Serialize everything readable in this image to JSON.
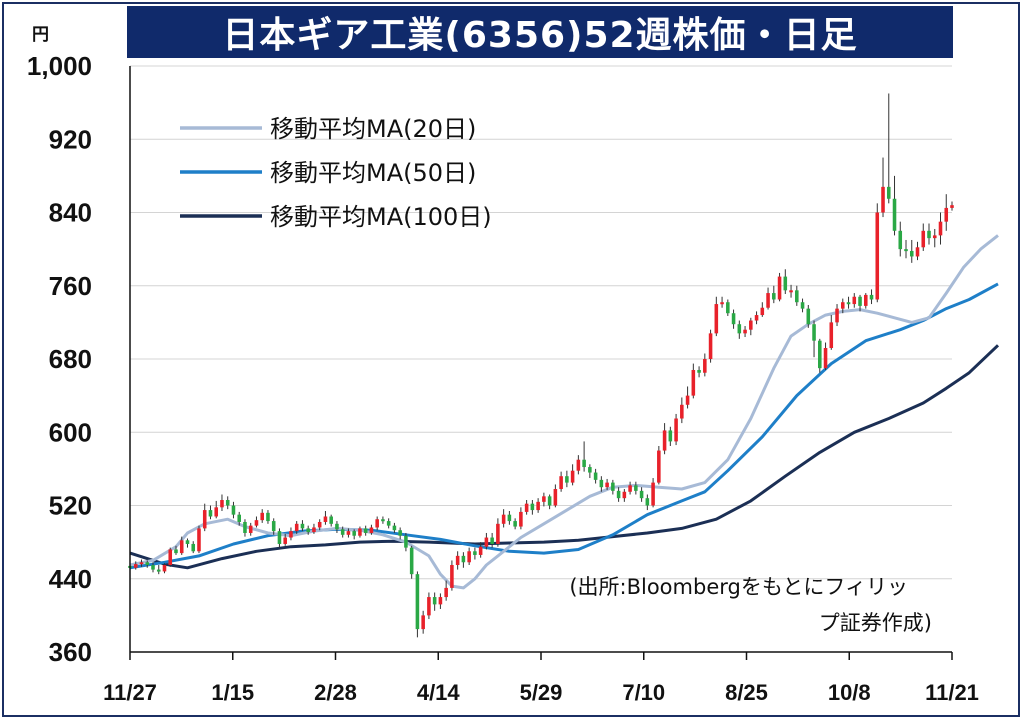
{
  "title": "日本ギア工業(6356)52週株価・日足",
  "chart_data": {
    "type": "candlestick",
    "title": "日本ギア工業(6356)52週株価・日足",
    "y_unit": "円",
    "ylim": [
      360,
      1000
    ],
    "yticks": [
      "1,000",
      "920",
      "840",
      "760",
      "680",
      "600",
      "520",
      "440",
      "360"
    ],
    "ytick_values": [
      1000,
      920,
      840,
      760,
      680,
      600,
      520,
      440,
      360
    ],
    "x_labels": [
      "11/27",
      "1/15",
      "2/28",
      "4/14",
      "5/29",
      "7/10",
      "8/25",
      "10/8",
      "11/21"
    ],
    "grid": "horizontal",
    "legend_position": "top-left",
    "up_color": "#e8212a",
    "down_color": "#2aa845",
    "series": [
      {
        "name": "移動平均MA(20日)",
        "color": "#a7bad6",
        "points": [
          [
            0,
            455
          ],
          [
            4,
            460
          ],
          [
            8,
            475
          ],
          [
            10,
            490
          ],
          [
            13,
            500
          ],
          [
            17,
            505
          ],
          [
            20,
            497
          ],
          [
            24,
            490
          ],
          [
            28,
            487
          ],
          [
            32,
            492
          ],
          [
            36,
            495
          ],
          [
            40,
            493
          ],
          [
            44,
            488
          ],
          [
            48,
            480
          ],
          [
            52,
            465
          ],
          [
            54,
            445
          ],
          [
            56,
            432
          ],
          [
            58,
            430
          ],
          [
            60,
            440
          ],
          [
            62,
            455
          ],
          [
            64,
            465
          ],
          [
            68,
            485
          ],
          [
            72,
            500
          ],
          [
            76,
            515
          ],
          [
            80,
            530
          ],
          [
            84,
            540
          ],
          [
            88,
            542
          ],
          [
            92,
            540
          ],
          [
            96,
            538
          ],
          [
            100,
            545
          ],
          [
            104,
            570
          ],
          [
            108,
            615
          ],
          [
            112,
            670
          ],
          [
            115,
            705
          ],
          [
            118,
            718
          ],
          [
            121,
            728
          ],
          [
            124,
            732
          ],
          [
            127,
            734
          ],
          [
            130,
            730
          ],
          [
            133,
            725
          ],
          [
            136,
            720
          ],
          [
            139,
            725
          ],
          [
            142,
            752
          ],
          [
            145,
            780
          ],
          [
            148,
            800
          ],
          [
            151,
            815
          ]
        ]
      },
      {
        "name": "移動平均MA(50日)",
        "color": "#1e7fc8",
        "points": [
          [
            0,
            452
          ],
          [
            6,
            458
          ],
          [
            12,
            465
          ],
          [
            18,
            478
          ],
          [
            24,
            487
          ],
          [
            30,
            492
          ],
          [
            36,
            494
          ],
          [
            42,
            493
          ],
          [
            48,
            488
          ],
          [
            54,
            483
          ],
          [
            60,
            476
          ],
          [
            66,
            470
          ],
          [
            72,
            468
          ],
          [
            78,
            472
          ],
          [
            84,
            488
          ],
          [
            90,
            510
          ],
          [
            96,
            525
          ],
          [
            100,
            535
          ],
          [
            104,
            558
          ],
          [
            110,
            595
          ],
          [
            116,
            640
          ],
          [
            122,
            675
          ],
          [
            128,
            700
          ],
          [
            134,
            712
          ],
          [
            138,
            722
          ],
          [
            142,
            735
          ],
          [
            146,
            745
          ],
          [
            151,
            762
          ]
        ]
      },
      {
        "name": "移動平均MA(100日)",
        "color": "#1b2f55",
        "points": [
          [
            0,
            468
          ],
          [
            6,
            456
          ],
          [
            10,
            452
          ],
          [
            16,
            462
          ],
          [
            22,
            470
          ],
          [
            28,
            475
          ],
          [
            34,
            477
          ],
          [
            40,
            480
          ],
          [
            46,
            481
          ],
          [
            52,
            480
          ],
          [
            60,
            478
          ],
          [
            66,
            479
          ],
          [
            72,
            480
          ],
          [
            78,
            482
          ],
          [
            84,
            486
          ],
          [
            90,
            490
          ],
          [
            96,
            495
          ],
          [
            102,
            505
          ],
          [
            108,
            525
          ],
          [
            114,
            552
          ],
          [
            120,
            578
          ],
          [
            126,
            600
          ],
          [
            132,
            615
          ],
          [
            138,
            632
          ],
          [
            142,
            648
          ],
          [
            146,
            665
          ],
          [
            151,
            695
          ]
        ]
      }
    ],
    "candles": [
      [
        454,
        452,
        456,
        448
      ],
      [
        452,
        456,
        459,
        450
      ],
      [
        456,
        458,
        461,
        453
      ],
      [
        458,
        455,
        460,
        452
      ],
      [
        455,
        450,
        458,
        447
      ],
      [
        450,
        448,
        455,
        445
      ],
      [
        448,
        455,
        457,
        446
      ],
      [
        455,
        472,
        474,
        453
      ],
      [
        472,
        468,
        476,
        466
      ],
      [
        468,
        482,
        486,
        466
      ],
      [
        482,
        478,
        484,
        474
      ],
      [
        478,
        470,
        481,
        468
      ],
      [
        470,
        495,
        498,
        468
      ],
      [
        495,
        515,
        522,
        492
      ],
      [
        515,
        508,
        520,
        505
      ],
      [
        508,
        518,
        525,
        506
      ],
      [
        518,
        526,
        532,
        514
      ],
      [
        526,
        520,
        530,
        516
      ],
      [
        520,
        510,
        524,
        506
      ],
      [
        510,
        502,
        513,
        498
      ],
      [
        502,
        490,
        505,
        486
      ],
      [
        490,
        498,
        501,
        487
      ],
      [
        498,
        504,
        508,
        496
      ],
      [
        504,
        512,
        516,
        501
      ],
      [
        512,
        503,
        515,
        500
      ],
      [
        503,
        492,
        506,
        488
      ],
      [
        492,
        478,
        495,
        474
      ],
      [
        478,
        485,
        489,
        476
      ],
      [
        485,
        492,
        496,
        482
      ],
      [
        492,
        500,
        503,
        489
      ],
      [
        500,
        495,
        504,
        492
      ],
      [
        495,
        491,
        498,
        488
      ],
      [
        491,
        496,
        500,
        489
      ],
      [
        496,
        502,
        505,
        493
      ],
      [
        502,
        508,
        514,
        499
      ],
      [
        508,
        500,
        510,
        497
      ],
      [
        500,
        494,
        503,
        490
      ],
      [
        494,
        488,
        497,
        485
      ],
      [
        488,
        492,
        495,
        485
      ],
      [
        492,
        487,
        494,
        483
      ],
      [
        487,
        495,
        497,
        485
      ],
      [
        495,
        490,
        498,
        487
      ],
      [
        490,
        496,
        499,
        488
      ],
      [
        496,
        505,
        508,
        493
      ],
      [
        505,
        503,
        508,
        500
      ],
      [
        503,
        498,
        506,
        495
      ],
      [
        498,
        493,
        501,
        490
      ],
      [
        493,
        487,
        496,
        483
      ],
      [
        487,
        474,
        490,
        470
      ],
      [
        474,
        445,
        476,
        440
      ],
      [
        445,
        385,
        448,
        376
      ],
      [
        385,
        400,
        405,
        380
      ],
      [
        400,
        420,
        425,
        396
      ],
      [
        420,
        412,
        425,
        405
      ],
      [
        412,
        420,
        424,
        407
      ],
      [
        420,
        430,
        438,
        416
      ],
      [
        430,
        455,
        460,
        427
      ],
      [
        455,
        465,
        470,
        450
      ],
      [
        465,
        458,
        469,
        452
      ],
      [
        458,
        470,
        474,
        455
      ],
      [
        470,
        466,
        474,
        461
      ],
      [
        466,
        475,
        480,
        463
      ],
      [
        475,
        485,
        490,
        472
      ],
      [
        485,
        478,
        490,
        474
      ],
      [
        478,
        500,
        506,
        475
      ],
      [
        500,
        510,
        516,
        496
      ],
      [
        510,
        503,
        514,
        499
      ],
      [
        503,
        497,
        506,
        494
      ],
      [
        497,
        513,
        518,
        494
      ],
      [
        513,
        522,
        526,
        510
      ],
      [
        522,
        515,
        526,
        510
      ],
      [
        515,
        524,
        528,
        512
      ],
      [
        524,
        530,
        534,
        519
      ],
      [
        530,
        520,
        532,
        516
      ],
      [
        520,
        538,
        543,
        518
      ],
      [
        538,
        552,
        557,
        535
      ],
      [
        552,
        545,
        558,
        540
      ],
      [
        545,
        558,
        565,
        542
      ],
      [
        558,
        570,
        575,
        554
      ],
      [
        570,
        562,
        590,
        557
      ],
      [
        562,
        556,
        565,
        550
      ],
      [
        556,
        548,
        560,
        544
      ],
      [
        548,
        540,
        552,
        535
      ],
      [
        540,
        545,
        549,
        537
      ],
      [
        545,
        536,
        548,
        532
      ],
      [
        536,
        528,
        540,
        524
      ],
      [
        528,
        535,
        538,
        524
      ],
      [
        535,
        542,
        546,
        532
      ],
      [
        542,
        536,
        546,
        532
      ],
      [
        536,
        528,
        540,
        524
      ],
      [
        528,
        520,
        532,
        515
      ],
      [
        520,
        545,
        550,
        518
      ],
      [
        545,
        580,
        585,
        543
      ],
      [
        580,
        602,
        610,
        576
      ],
      [
        602,
        590,
        606,
        585
      ],
      [
        590,
        615,
        620,
        586
      ],
      [
        615,
        630,
        638,
        610
      ],
      [
        630,
        640,
        650,
        626
      ],
      [
        640,
        668,
        675,
        637
      ],
      [
        668,
        665,
        672,
        660
      ],
      [
        665,
        680,
        686,
        661
      ],
      [
        680,
        708,
        712,
        676
      ],
      [
        708,
        740,
        748,
        705
      ],
      [
        740,
        742,
        748,
        736
      ],
      [
        742,
        730,
        745,
        727
      ],
      [
        730,
        718,
        734,
        713
      ],
      [
        718,
        708,
        722,
        702
      ],
      [
        708,
        712,
        716,
        704
      ],
      [
        712,
        722,
        725,
        706
      ],
      [
        722,
        728,
        732,
        718
      ],
      [
        728,
        736,
        742,
        726
      ],
      [
        736,
        752,
        758,
        734
      ],
      [
        752,
        745,
        760,
        741
      ],
      [
        745,
        770,
        774,
        743
      ],
      [
        770,
        755,
        778,
        751
      ],
      [
        755,
        755,
        761,
        747
      ],
      [
        755,
        742,
        760,
        738
      ],
      [
        742,
        735,
        746,
        731
      ],
      [
        735,
        718,
        739,
        714
      ],
      [
        718,
        700,
        722,
        682
      ],
      [
        700,
        670,
        702,
        665
      ],
      [
        670,
        692,
        698,
        668
      ],
      [
        692,
        720,
        728,
        690
      ],
      [
        720,
        735,
        740,
        716
      ],
      [
        735,
        742,
        746,
        730
      ],
      [
        742,
        740,
        748,
        735
      ],
      [
        740,
        748,
        752,
        736
      ],
      [
        748,
        738,
        750,
        732
      ],
      [
        738,
        750,
        752,
        735
      ],
      [
        750,
        745,
        756,
        740
      ],
      [
        745,
        840,
        850,
        742
      ],
      [
        840,
        868,
        900,
        835
      ],
      [
        868,
        855,
        970,
        850
      ],
      [
        855,
        820,
        880,
        815
      ],
      [
        820,
        800,
        830,
        792
      ],
      [
        800,
        798,
        810,
        790
      ],
      [
        798,
        792,
        810,
        785
      ],
      [
        792,
        802,
        808,
        788
      ],
      [
        802,
        820,
        828,
        798
      ],
      [
        820,
        812,
        828,
        805
      ],
      [
        812,
        815,
        822,
        802
      ],
      [
        815,
        830,
        840,
        805
      ],
      [
        830,
        845,
        860,
        820
      ],
      [
        845,
        848,
        852,
        842
      ]
    ],
    "legend": [
      "移動平均MA(20日)",
      "移動平均MA(50日)",
      "移動平均MA(100日)"
    ],
    "source": [
      "(出所:Bloombergをもとにフィリッ",
      "プ証券作成)"
    ]
  }
}
